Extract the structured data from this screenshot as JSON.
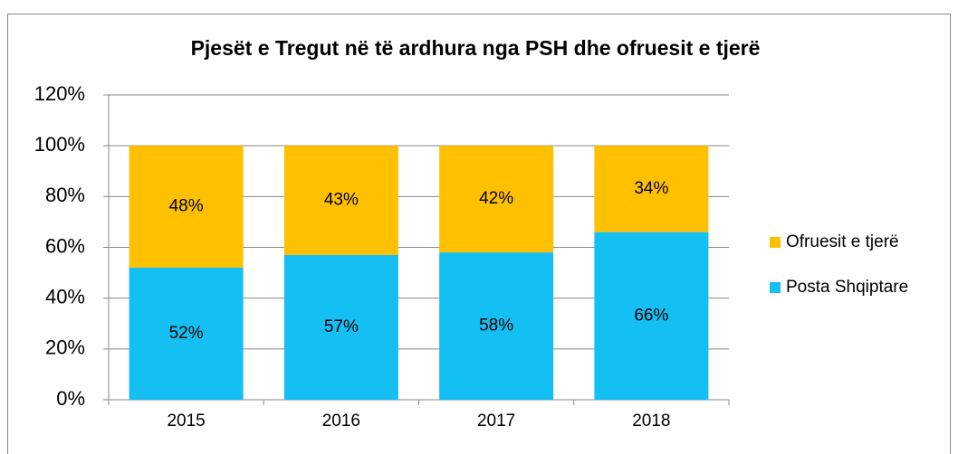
{
  "chart_data": {
    "type": "stacked_bar",
    "title": "Pjesët e Tregut në të ardhura nga PSH dhe ofruesit e tjerë",
    "categories": [
      "2015",
      "2016",
      "2017",
      "2018"
    ],
    "series": [
      {
        "name": "Posta Shqiptare",
        "color": "#14BFF4",
        "values": [
          52,
          57,
          58,
          66
        ],
        "value_labels": [
          "52%",
          "57%",
          "58%",
          "66%"
        ]
      },
      {
        "name": "Ofruesit e tjerë",
        "color": "#FFC000",
        "values": [
          48,
          43,
          42,
          34
        ],
        "value_labels": [
          "48%",
          "43%",
          "42%",
          "34%"
        ]
      }
    ],
    "ylim": [
      0,
      120
    ],
    "yticks": [
      {
        "value": 0,
        "label": "0%"
      },
      {
        "value": 20,
        "label": "20%"
      },
      {
        "value": 40,
        "label": "40%"
      },
      {
        "value": 60,
        "label": "60%"
      },
      {
        "value": 80,
        "label": "80%"
      },
      {
        "value": 100,
        "label": "100%"
      },
      {
        "value": 120,
        "label": "120%"
      }
    ],
    "grid": true,
    "legend": "right"
  }
}
